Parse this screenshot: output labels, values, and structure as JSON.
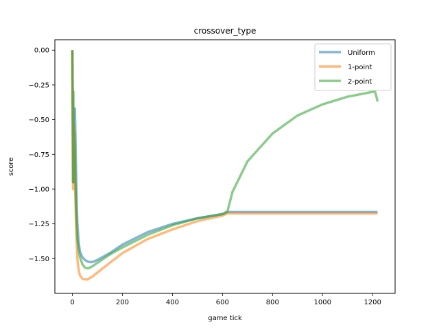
{
  "chart_data": {
    "type": "line",
    "title": "crossover_type",
    "xlabel": "game tick",
    "ylabel": "score",
    "xlim": [
      -70,
      1290
    ],
    "ylim": [
      -1.75,
      0.075
    ],
    "xticks": [
      0,
      200,
      400,
      600,
      800,
      1000,
      1200
    ],
    "xtick_labels": [
      "0",
      "200",
      "400",
      "600",
      "800",
      "1000",
      "1200"
    ],
    "yticks": [
      0.0,
      -0.25,
      -0.5,
      -0.75,
      -1.0,
      -1.25,
      -1.5
    ],
    "ytick_labels": [
      "0.00",
      "−0.25",
      "−0.50",
      "−0.75",
      "−1.00",
      "−1.25",
      "−1.50"
    ],
    "grid": false,
    "legend_position": "top-right",
    "series": [
      {
        "name": "Uniform",
        "color": "#1f77b4",
        "x": [
          0,
          4,
          8,
          10,
          12,
          14,
          16,
          18,
          20,
          25,
          30,
          40,
          50,
          60,
          70,
          80,
          100,
          150,
          200,
          300,
          400,
          500,
          600,
          620,
          700,
          800,
          900,
          1000,
          1100,
          1200,
          1220
        ],
        "y": [
          0.0,
          -0.95,
          -0.6,
          -0.42,
          -0.6,
          -0.8,
          -1.0,
          -1.15,
          -1.25,
          -1.38,
          -1.45,
          -1.49,
          -1.51,
          -1.52,
          -1.525,
          -1.525,
          -1.51,
          -1.46,
          -1.4,
          -1.31,
          -1.25,
          -1.21,
          -1.18,
          -1.165,
          -1.165,
          -1.165,
          -1.165,
          -1.165,
          -1.165,
          -1.165,
          -1.165
        ]
      },
      {
        "name": "1-point",
        "color": "#ff7f0e",
        "x": [
          0,
          3,
          6,
          8,
          10,
          12,
          14,
          16,
          18,
          20,
          25,
          30,
          40,
          50,
          60,
          70,
          80,
          100,
          150,
          200,
          300,
          400,
          500,
          600,
          620,
          700,
          800,
          900,
          1000,
          1100,
          1200,
          1220
        ],
        "y": [
          0.0,
          -1.0,
          -0.55,
          -0.7,
          -0.9,
          -1.05,
          -1.2,
          -1.33,
          -1.42,
          -1.5,
          -1.58,
          -1.62,
          -1.645,
          -1.65,
          -1.65,
          -1.64,
          -1.63,
          -1.6,
          -1.53,
          -1.46,
          -1.36,
          -1.29,
          -1.23,
          -1.19,
          -1.175,
          -1.175,
          -1.175,
          -1.175,
          -1.175,
          -1.175,
          -1.175,
          -1.175
        ]
      },
      {
        "name": "2-point",
        "color": "#2ca02c",
        "x": [
          0,
          2,
          4,
          5,
          6,
          8,
          10,
          12,
          14,
          16,
          18,
          20,
          25,
          30,
          40,
          50,
          60,
          70,
          80,
          100,
          150,
          200,
          300,
          400,
          500,
          600,
          620,
          640,
          700,
          800,
          900,
          1000,
          1100,
          1200,
          1210,
          1215,
          1220
        ],
        "y": [
          0.0,
          -0.95,
          -0.3,
          -0.6,
          -0.95,
          -0.6,
          -0.75,
          -0.95,
          -1.1,
          -1.22,
          -1.3,
          -1.36,
          -1.44,
          -1.49,
          -1.54,
          -1.565,
          -1.57,
          -1.565,
          -1.555,
          -1.53,
          -1.47,
          -1.42,
          -1.33,
          -1.26,
          -1.21,
          -1.18,
          -1.16,
          -1.02,
          -0.8,
          -0.6,
          -0.47,
          -0.39,
          -0.335,
          -0.3,
          -0.3,
          -0.33,
          -0.37
        ]
      }
    ]
  }
}
